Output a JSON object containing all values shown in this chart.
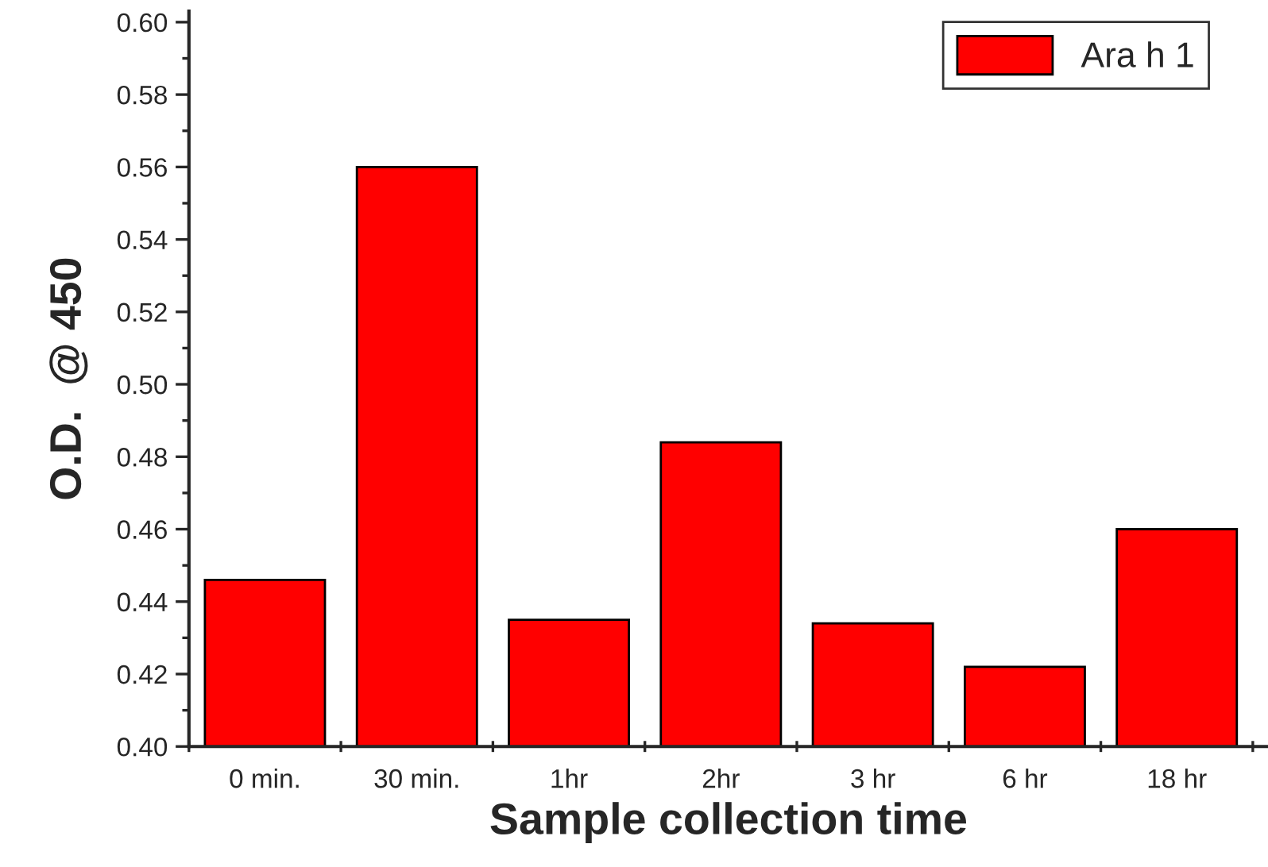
{
  "chart_data": {
    "type": "bar",
    "xlabel": "Sample collection time",
    "ylabel": "O.D.  @ 450",
    "categories": [
      "0 min.",
      "30 min.",
      "1hr",
      "2hr",
      "3 hr",
      "6 hr",
      "18 hr"
    ],
    "series": [
      {
        "name": "Ara h 1",
        "color": "#ff0000",
        "values": [
          0.446,
          0.56,
          0.435,
          0.484,
          0.434,
          0.422,
          0.46
        ]
      }
    ],
    "ylim": [
      0.4,
      0.603
    ],
    "yticks": [
      {
        "value": 0.4,
        "label": "0.40"
      },
      {
        "value": 0.42,
        "label": "0.42"
      },
      {
        "value": 0.44,
        "label": "0.44"
      },
      {
        "value": 0.46,
        "label": "0.46"
      },
      {
        "value": 0.48,
        "label": "0.48"
      },
      {
        "value": 0.5,
        "label": "0.50"
      },
      {
        "value": 0.52,
        "label": "0.52"
      },
      {
        "value": 0.54,
        "label": "0.54"
      },
      {
        "value": 0.56,
        "label": "0.56"
      },
      {
        "value": 0.58,
        "label": "0.58"
      },
      {
        "value": 0.6,
        "label": "0.60"
      }
    ],
    "grid": false,
    "legend": "top right"
  }
}
